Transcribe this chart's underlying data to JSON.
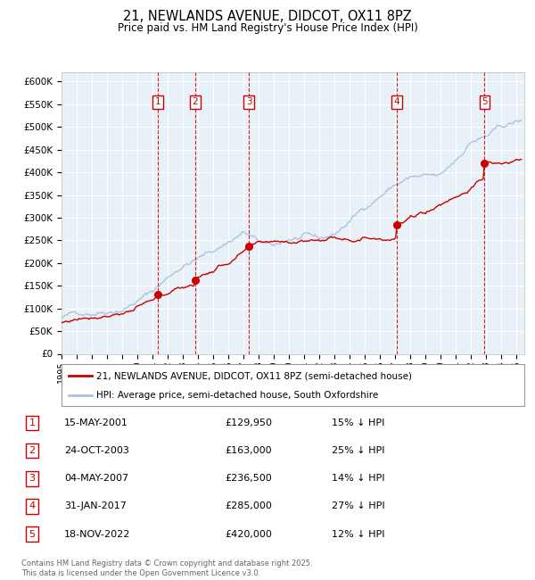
{
  "title": "21, NEWLANDS AVENUE, DIDCOT, OX11 8PZ",
  "subtitle": "Price paid vs. HM Land Registry's House Price Index (HPI)",
  "footer": "Contains HM Land Registry data © Crown copyright and database right 2025.\nThis data is licensed under the Open Government Licence v3.0.",
  "legend_property": "21, NEWLANDS AVENUE, DIDCOT, OX11 8PZ (semi-detached house)",
  "legend_hpi": "HPI: Average price, semi-detached house, South Oxfordshire",
  "transactions": [
    {
      "num": 1,
      "date": "15-MAY-2001",
      "year": 2001.37,
      "price": 129950,
      "pct": "15% ↓ HPI"
    },
    {
      "num": 2,
      "date": "24-OCT-2003",
      "year": 2003.81,
      "price": 163000,
      "pct": "25% ↓ HPI"
    },
    {
      "num": 3,
      "date": "04-MAY-2007",
      "year": 2007.34,
      "price": 236500,
      "pct": "14% ↓ HPI"
    },
    {
      "num": 4,
      "date": "31-JAN-2017",
      "year": 2017.08,
      "price": 285000,
      "pct": "27% ↓ HPI"
    },
    {
      "num": 5,
      "date": "18-NOV-2022",
      "year": 2022.88,
      "price": 420000,
      "pct": "12% ↓ HPI"
    }
  ],
  "xlim": [
    1995,
    2025.5
  ],
  "ylim": [
    0,
    620000
  ],
  "yticks": [
    0,
    50000,
    100000,
    150000,
    200000,
    250000,
    300000,
    350000,
    400000,
    450000,
    500000,
    550000,
    600000
  ],
  "ytick_labels": [
    "£0",
    "£50K",
    "£100K",
    "£150K",
    "£200K",
    "£250K",
    "£300K",
    "£350K",
    "£400K",
    "£450K",
    "£500K",
    "£550K",
    "£600K"
  ],
  "xticks": [
    1995,
    1996,
    1997,
    1998,
    1999,
    2000,
    2001,
    2002,
    2003,
    2004,
    2005,
    2006,
    2007,
    2008,
    2009,
    2010,
    2011,
    2012,
    2013,
    2014,
    2015,
    2016,
    2017,
    2018,
    2019,
    2020,
    2021,
    2022,
    2023,
    2024,
    2025
  ],
  "property_color": "#cc0000",
  "hpi_color": "#aac4e0",
  "background_color": "#e8f0f8",
  "vline_color": "#cc0000",
  "marker_color": "#cc0000",
  "box_color": "#cc0000",
  "grid_color": "#ffffff",
  "hpi_anchors_x": [
    1995,
    1997,
    1999,
    2001,
    2003,
    2005,
    2007,
    2008,
    2009,
    2010,
    2011,
    2012,
    2013,
    2014,
    2015,
    2016,
    2017,
    2018,
    2019,
    2020,
    2021,
    2022,
    2023,
    2024,
    2025
  ],
  "hpi_anchors_v": [
    80000,
    95000,
    115000,
    155000,
    215000,
    245000,
    290000,
    265000,
    248000,
    265000,
    268000,
    255000,
    265000,
    295000,
    325000,
    355000,
    380000,
    395000,
    390000,
    385000,
    420000,
    465000,
    475000,
    490000,
    500000
  ],
  "prop_anchors_x": [
    1995,
    2001.37,
    2003.81,
    2007.34,
    2017.08,
    2022.88,
    2025.3
  ],
  "prop_anchors_v": [
    68000,
    129950,
    163000,
    236500,
    285000,
    420000,
    445000
  ]
}
